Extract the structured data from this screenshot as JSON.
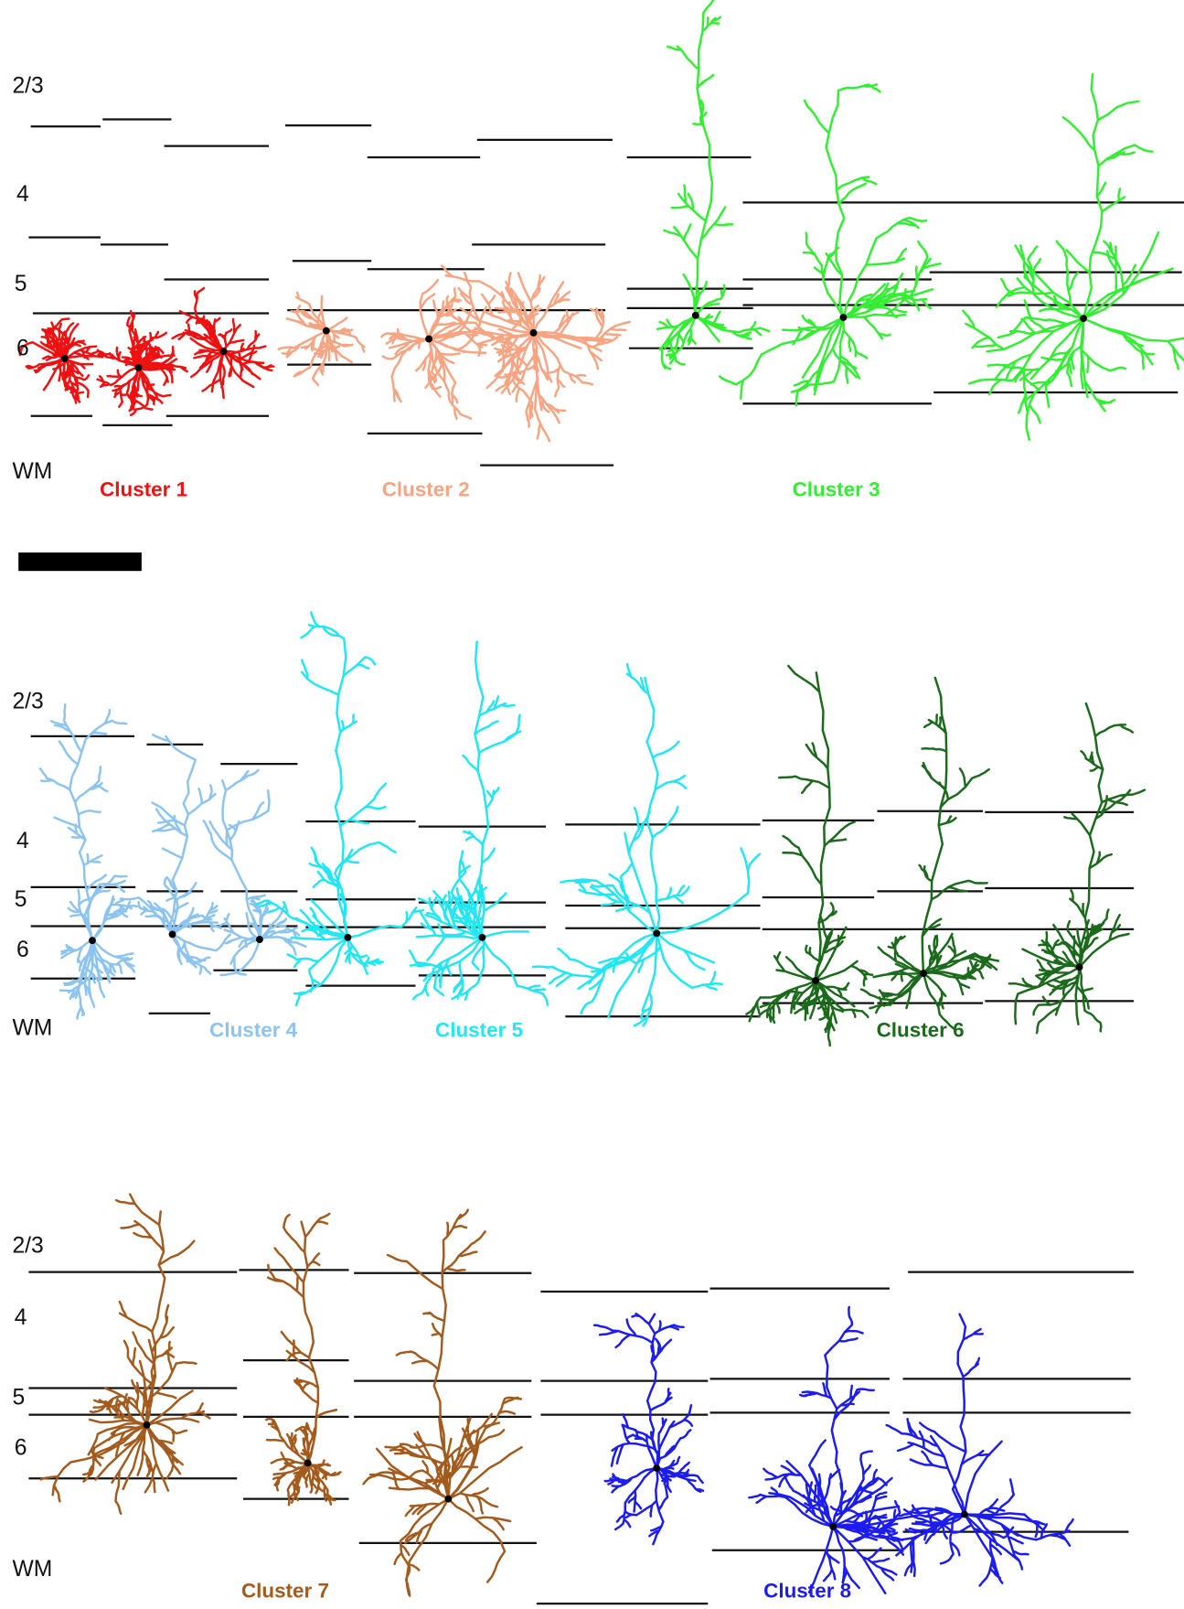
{
  "panels": [
    {
      "layers": [
        "2/3",
        "4",
        "5",
        "6",
        "WM"
      ],
      "clusters": [
        {
          "label": "Cluster 1",
          "color": "#ee1111"
        },
        {
          "label": "Cluster 2",
          "color": "#f6a482"
        },
        {
          "label": "Cluster 3",
          "color": "#33ee33"
        }
      ]
    },
    {
      "layers": [
        "2/3",
        "4",
        "5",
        "6",
        "WM"
      ],
      "clusters": [
        {
          "label": "Cluster 4",
          "color": "#8cc4ef"
        },
        {
          "label": "Cluster 5",
          "color": "#22e6f2"
        },
        {
          "label": "Cluster 6",
          "color": "#1b6a1b"
        }
      ]
    },
    {
      "layers": [
        "2/3",
        "4",
        "5",
        "6",
        "WM"
      ],
      "clusters": [
        {
          "label": "Cluster 7",
          "color": "#a35a1d"
        },
        {
          "label": "Cluster 8",
          "color": "#1c1cee"
        }
      ]
    }
  ]
}
